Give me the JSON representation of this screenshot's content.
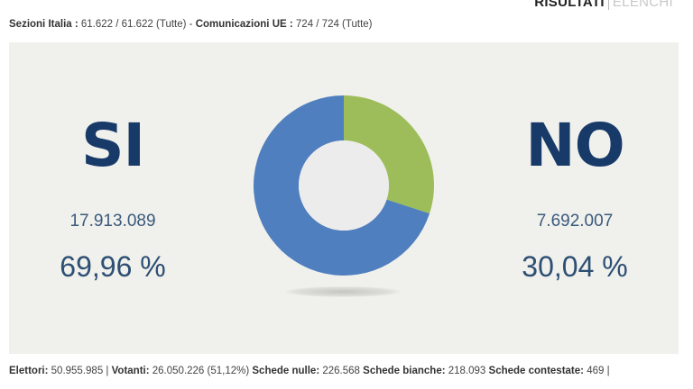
{
  "tabs": {
    "active": "RISULTATI",
    "inactive": "ELENCHI"
  },
  "counters": {
    "sezioni_label": "Sezioni Italia :",
    "sezioni_value": "61.622 / 61.622 (Tutte)",
    "separator": "-",
    "comunicazioni_label": "Comunicazioni UE :",
    "comunicazioni_value": "724 / 724 (Tutte)"
  },
  "results": {
    "si": {
      "label": "SI",
      "votes": "17.913.089",
      "percent": "69,96 %"
    },
    "no": {
      "label": "NO",
      "votes": "7.692.007",
      "percent": "30,04 %"
    }
  },
  "chart_data": {
    "type": "pie",
    "categories": [
      "SI",
      "NO"
    ],
    "values": [
      69.96,
      30.04
    ],
    "colors": [
      "#4f7fbe",
      "#9dbd5a"
    ],
    "donut": true
  },
  "footer": {
    "elettori_label": "Elettori:",
    "elettori_value": "50.955.985 |",
    "votanti_label": "Votanti:",
    "votanti_value": "26.050.226 (51,12%)",
    "nulle_label": "Schede nulle:",
    "nulle_value": "226.568",
    "bianche_label": "Schede bianche:",
    "bianche_value": "218.093",
    "contestate_label": "Schede contestate:",
    "contestate_value": "469 |"
  }
}
